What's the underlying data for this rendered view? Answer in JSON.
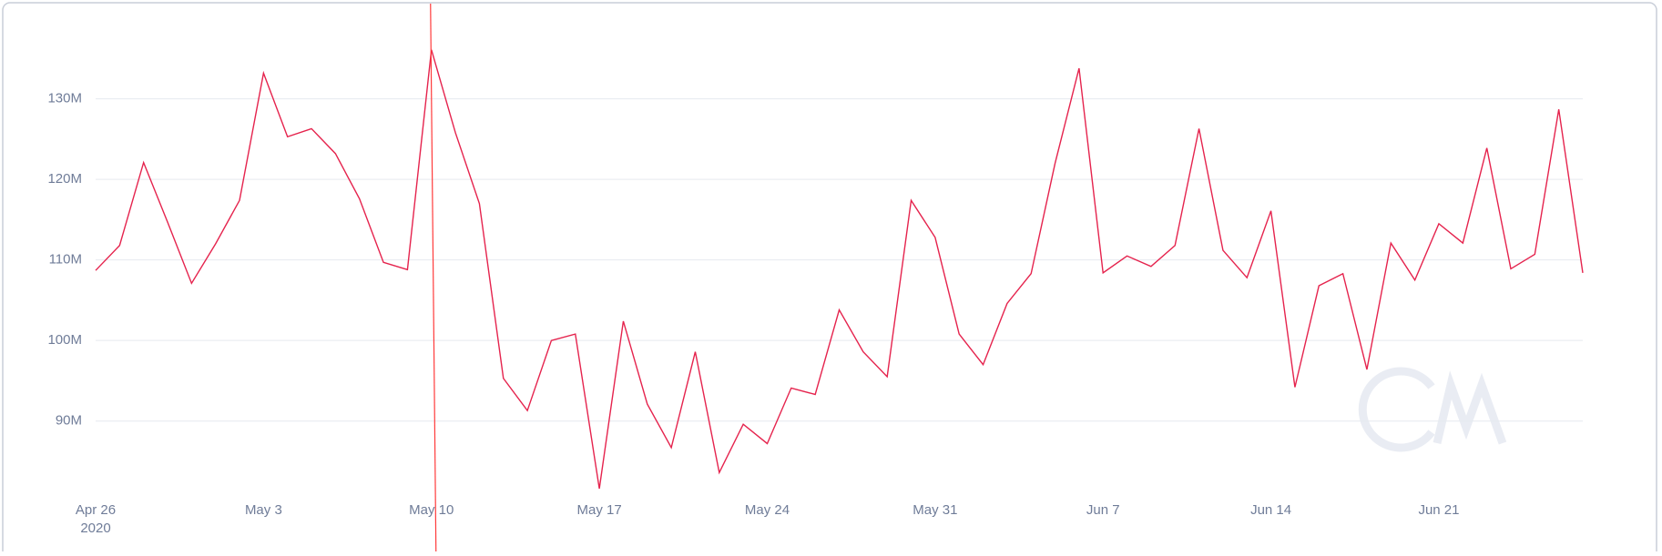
{
  "chart_data": {
    "type": "line",
    "x": [
      "2020-04-26",
      "2020-04-27",
      "2020-04-28",
      "2020-04-29",
      "2020-04-30",
      "2020-05-01",
      "2020-05-02",
      "2020-05-03",
      "2020-05-04",
      "2020-05-05",
      "2020-05-06",
      "2020-05-07",
      "2020-05-08",
      "2020-05-09",
      "2020-05-10",
      "2020-05-11",
      "2020-05-12",
      "2020-05-13",
      "2020-05-14",
      "2020-05-15",
      "2020-05-16",
      "2020-05-17",
      "2020-05-18",
      "2020-05-19",
      "2020-05-20",
      "2020-05-21",
      "2020-05-22",
      "2020-05-23",
      "2020-05-24",
      "2020-05-25",
      "2020-05-26",
      "2020-05-27",
      "2020-05-28",
      "2020-05-29",
      "2020-05-30",
      "2020-05-31",
      "2020-06-01",
      "2020-06-02",
      "2020-06-03",
      "2020-06-04",
      "2020-06-05",
      "2020-06-06",
      "2020-06-07",
      "2020-06-08",
      "2020-06-09",
      "2020-06-10",
      "2020-06-11",
      "2020-06-12",
      "2020-06-13",
      "2020-06-14",
      "2020-06-15",
      "2020-06-16",
      "2020-06-17",
      "2020-06-18",
      "2020-06-19",
      "2020-06-20",
      "2020-06-21",
      "2020-06-22",
      "2020-06-23",
      "2020-06-24",
      "2020-06-25",
      "2020-06-26",
      "2020-06-27"
    ],
    "series": [
      {
        "color": "#e5234d",
        "values": [
          108700000,
          111800000,
          122100000,
          114700000,
          107100000,
          112000000,
          117400000,
          133200000,
          125300000,
          126300000,
          123200000,
          117600000,
          109700000,
          108800000,
          136100000,
          125800000,
          117000000,
          95300000,
          91300000,
          100000000,
          100800000,
          81600000,
          102400000,
          92100000,
          86700000,
          98600000,
          83600000,
          89600000,
          87200000,
          94100000,
          93300000,
          103800000,
          98600000,
          95500000,
          117400000,
          112800000,
          100800000,
          97000000,
          104600000,
          108300000,
          122000000,
          133800000,
          108400000,
          110500000,
          109200000,
          111800000,
          126300000,
          111200000,
          107800000,
          116100000,
          94200000,
          106800000,
          108300000,
          96400000,
          112100000,
          107500000,
          114500000,
          112100000,
          123900000,
          108900000,
          110700000,
          128700000,
          108400000
        ]
      }
    ],
    "xlim": [
      "2020-04-26",
      "2020-06-27"
    ],
    "xticks": [
      {
        "value": "2020-04-26",
        "label": "Apr 26"
      },
      {
        "value": "2020-05-03",
        "label": "May 3"
      },
      {
        "value": "2020-05-10",
        "label": "May 10"
      },
      {
        "value": "2020-05-17",
        "label": "May 17"
      },
      {
        "value": "2020-05-24",
        "label": "May 24"
      },
      {
        "value": "2020-05-31",
        "label": "May 31"
      },
      {
        "value": "2020-06-07",
        "label": "Jun 7"
      },
      {
        "value": "2020-06-14",
        "label": "Jun 14"
      },
      {
        "value": "2020-06-21",
        "label": "Jun 21"
      }
    ],
    "x_year_label": "2020",
    "ylim": [
      80700000,
      141600000
    ],
    "yticks": [
      {
        "value": 90000000,
        "label": "90M"
      },
      {
        "value": 100000000,
        "label": "100M"
      },
      {
        "value": 110000000,
        "label": "110M"
      },
      {
        "value": 120000000,
        "label": "120M"
      },
      {
        "value": 130000000,
        "label": "130M"
      }
    ],
    "grid": true,
    "crosshair_x": "2020-05-10"
  }
}
